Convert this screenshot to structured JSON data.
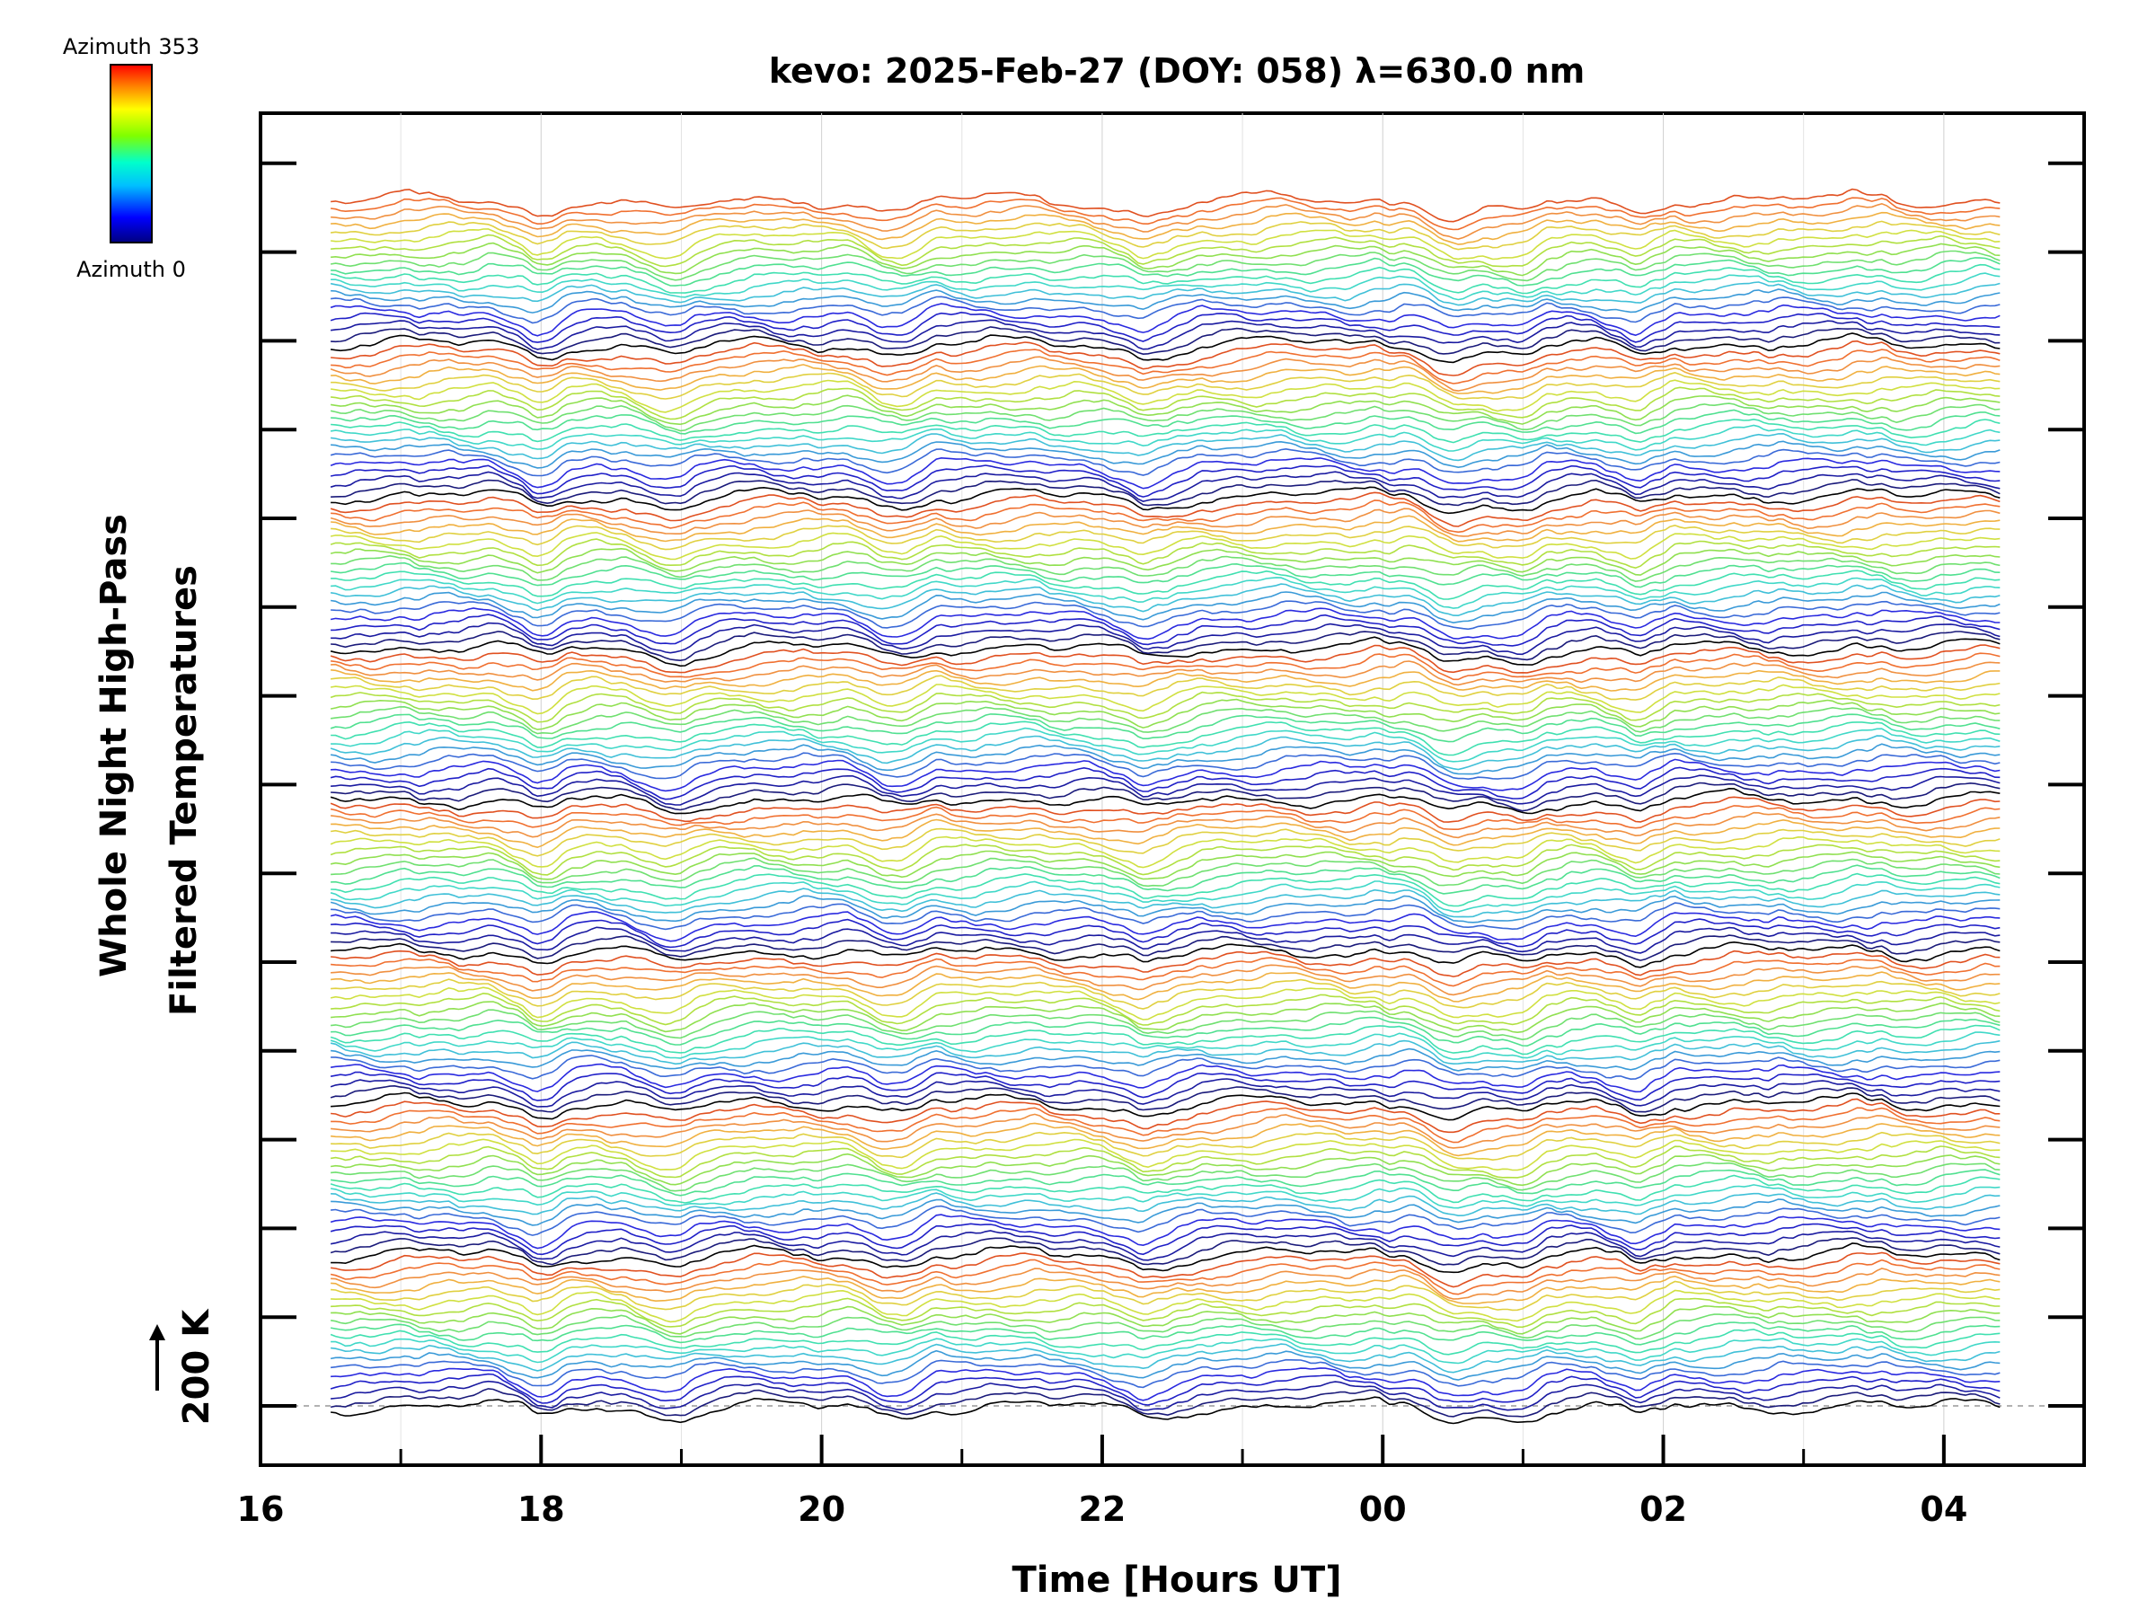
{
  "chart_data": {
    "type": "line",
    "title": "kevo: 2025-Feb-27 (DOY: 058) λ=630.0 nm",
    "xlabel": "Time [Hours UT]",
    "ylabel_line1": "Whole Night High-Pass",
    "ylabel_line2": "Filtered Temperatures",
    "scale_label": "200 K",
    "xlim": [
      16,
      29
    ],
    "x_start": 16.5,
    "x_end": 28.4,
    "x_ticks": [
      "16",
      "18",
      "20",
      "22",
      "00",
      "02",
      "04"
    ],
    "colorbar": {
      "top_label": "Azimuth 353",
      "bottom_label": "Azimuth 0",
      "colors": [
        "#000080",
        "#0000ff",
        "#00bfff",
        "#00ffcc",
        "#7fff00",
        "#ffff00",
        "#ff8000",
        "#ff0000"
      ]
    },
    "series_count": 160,
    "traces_per_cycle": 20,
    "trace_colors": [
      "#000000",
      "#1a1a7a",
      "#1a1aa0",
      "#2020c8",
      "#2a2ae0",
      "#3a6ad8",
      "#3a9ad8",
      "#40c0d8",
      "#40d8c8",
      "#40e0b0",
      "#50e090",
      "#70e070",
      "#90e050",
      "#b0e040",
      "#d0e040",
      "#e0d040",
      "#f0b040",
      "#f09040",
      "#f07030",
      "#e05020"
    ],
    "common_dips_hours": [
      18.0,
      18.9,
      20.5,
      22.3,
      24.5,
      24.9,
      25.8
    ]
  }
}
